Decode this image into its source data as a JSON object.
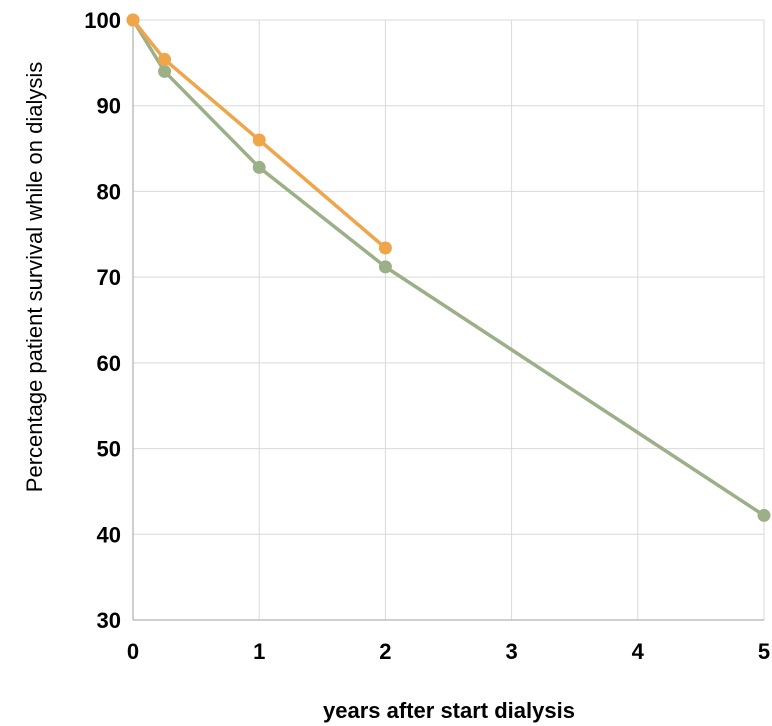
{
  "chart_data": {
    "type": "line",
    "title": "",
    "xlabel": "years after start dialysis",
    "ylabel": "Percentage patient survival while on dialysis",
    "xlim": [
      0,
      5
    ],
    "ylim": [
      30,
      100
    ],
    "xticks": [
      "0",
      "1",
      "2",
      "3",
      "4",
      "5"
    ],
    "yticks": [
      "30",
      "40",
      "50",
      "60",
      "70",
      "80",
      "90",
      "100"
    ],
    "grid": true,
    "legend": "none",
    "series": [
      {
        "color": "#9cb087",
        "x": [
          0,
          0.25,
          1,
          2,
          5
        ],
        "y": [
          100,
          94,
          82.8,
          71.2,
          42.2
        ]
      },
      {
        "color": "#f0a54a",
        "x": [
          0,
          0.25,
          1,
          2
        ],
        "y": [
          100,
          95.4,
          86,
          73.4
        ]
      }
    ]
  }
}
